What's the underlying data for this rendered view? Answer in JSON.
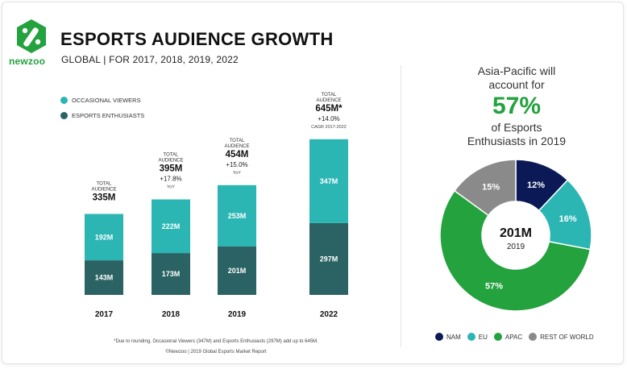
{
  "header": {
    "logo_text": "newzoo",
    "title": "ESPORTS AUDIENCE GROWTH",
    "subtitle": "GLOBAL | FOR 2017, 2018, 2019, 2022"
  },
  "legend_left": [
    {
      "label": "OCCASIONAL VIEWERS",
      "color": "#2bb6b4"
    },
    {
      "label": "ESPORTS ENTHUSIASTS",
      "color": "#2b6263"
    }
  ],
  "chart_data": [
    {
      "type": "bar",
      "stacked": true,
      "categories": [
        "2017",
        "2018",
        "2019",
        "2022"
      ],
      "series": [
        {
          "name": "ESPORTS ENTHUSIASTS",
          "values": [
            143,
            173,
            201,
            297
          ],
          "labels": [
            "143M",
            "173M",
            "201M",
            "297M"
          ],
          "color": "#2b6263"
        },
        {
          "name": "OCCASIONAL VIEWERS",
          "values": [
            192,
            222,
            253,
            347
          ],
          "labels": [
            "192M",
            "222M",
            "253M",
            "347M"
          ],
          "color": "#2bb6b4"
        }
      ],
      "totals": [
        {
          "label1": "TOTAL",
          "label2": "AUDIENCE",
          "value": "335M",
          "growth": "",
          "note": ""
        },
        {
          "label1": "TOTAL",
          "label2": "AUDIENCE",
          "value": "395M",
          "growth": "+17.8%",
          "note": "YoY"
        },
        {
          "label1": "TOTAL",
          "label2": "AUDIENCE",
          "value": "454M",
          "growth": "+15.0%",
          "note": "YoY"
        },
        {
          "label1": "TOTAL",
          "label2": "AUDIENCE",
          "value": "645M*",
          "growth": "+14.0%",
          "note": "CAGR 2017-2022"
        }
      ],
      "footnote": "*Due to rounding, Occasional Viewers (347M) and Esports Enthusiasts (297M) add up to 645M.",
      "credit": "©Newzoo | 2019 Global Esports Market Report"
    },
    {
      "type": "pie",
      "donut": true,
      "center_value": "201M",
      "center_year": "2019",
      "slices": [
        {
          "name": "NAM",
          "value": 12,
          "label": "12%",
          "color": "#0b1a56",
          "label_color": "#ffffff"
        },
        {
          "name": "EU",
          "value": 16,
          "label": "16%",
          "color": "#2bb6b4",
          "label_color": "#ffffff"
        },
        {
          "name": "APAC",
          "value": 57,
          "label": "57%",
          "color": "#23a23e",
          "label_color": "#ffffff"
        },
        {
          "name": "REST OF WORLD",
          "value": 15,
          "label": "15%",
          "color": "#8a8a8a",
          "label_color": "#ffffff"
        }
      ]
    }
  ],
  "right_panel": {
    "line1": "Asia-Pacific will",
    "line2": "account for",
    "highlight": "57%",
    "line3": "of Esports",
    "line4": "Enthusiasts in 2019"
  }
}
